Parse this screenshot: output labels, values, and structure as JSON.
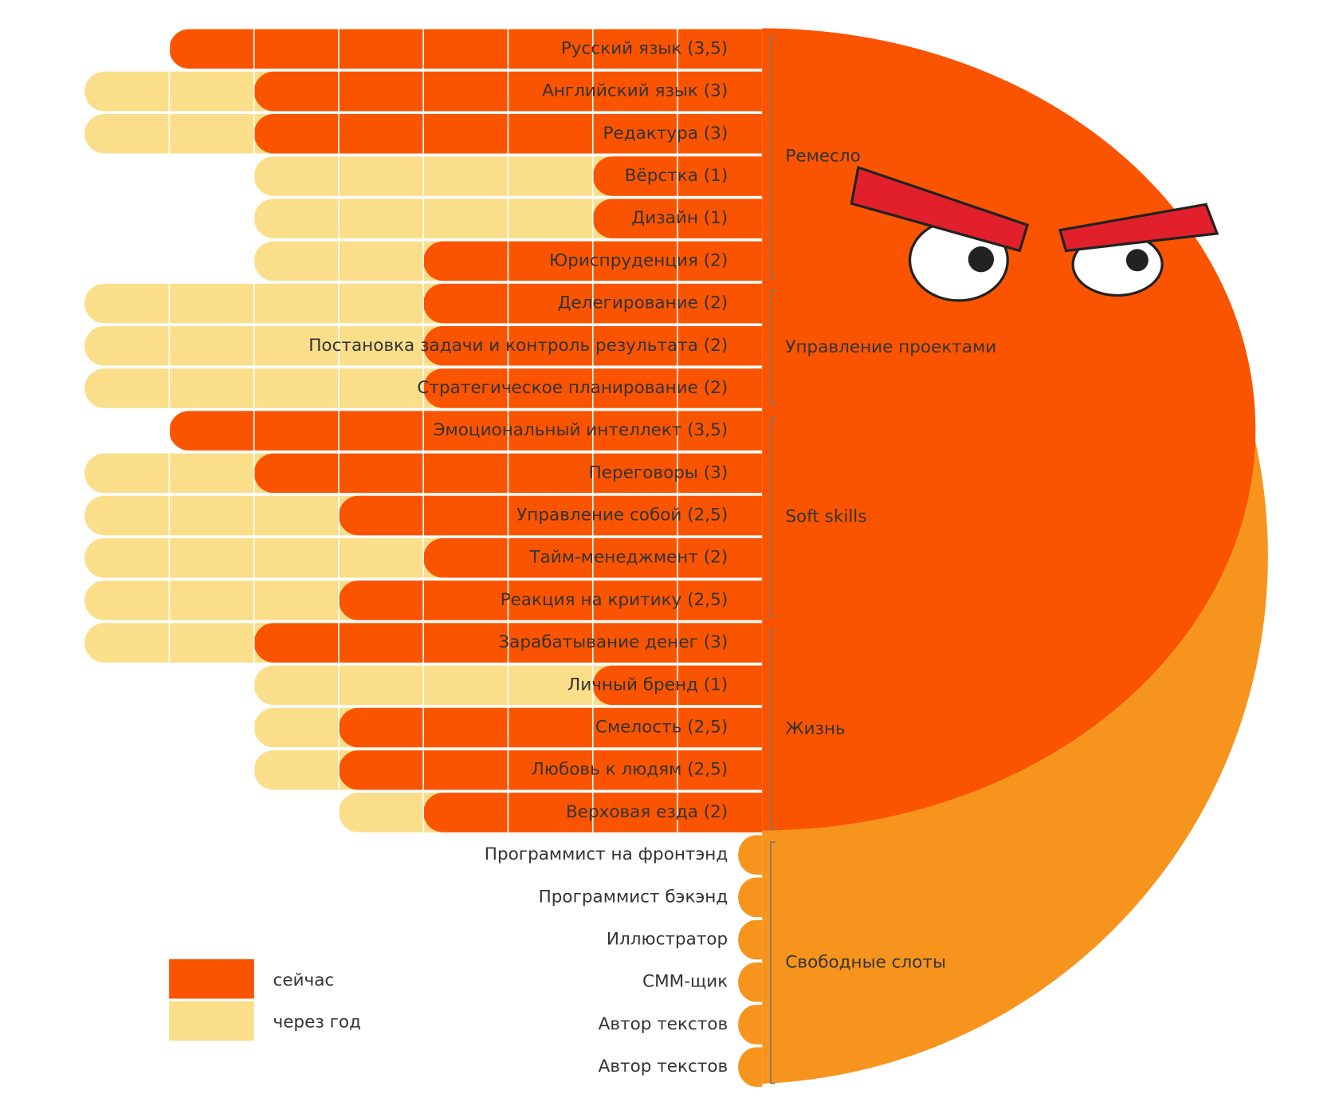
{
  "chart_data": {
    "type": "bar",
    "orientation": "horizontal",
    "direction": "left",
    "xlim": [
      0,
      4
    ],
    "series": [
      {
        "name": "сейчас",
        "color": "#fa5400",
        "values": [
          [
            3.5,
            3,
            3,
            1,
            1,
            2
          ],
          [
            2,
            2,
            2
          ],
          [
            3.5,
            3,
            2.5,
            2,
            2.5
          ],
          [
            3,
            1,
            2.5,
            2.5,
            2
          ]
        ]
      },
      {
        "name": "через год",
        "color": "#fade8a",
        "values": [
          [
            3.5,
            4,
            4,
            3,
            3,
            3
          ],
          [
            4,
            4,
            4
          ],
          [
            3.5,
            4,
            4,
            4,
            4
          ],
          [
            4,
            3,
            3,
            3,
            2.5
          ]
        ]
      }
    ],
    "groups": [
      {
        "name": "Ремесло",
        "categories": [
          "Русский язык (3,5)",
          "Английский язык (3)",
          "Редактура (3)",
          "Вёрстка (1)",
          "Дизайн (1)",
          "Юриспруденция (2)"
        ]
      },
      {
        "name": "Управление проектами",
        "categories": [
          "Делегирование (2)",
          "Постановка задачи и контроль результата (2)",
          "Стратегическое планирование (2)"
        ]
      },
      {
        "name": "Soft skills",
        "categories": [
          "Эмоциональный интеллект (3,5)",
          "Переговоры (3)",
          "Управление собой (2,5)",
          "Тайм-менеджмент (2)",
          "Реакция на критику (2,5)"
        ]
      },
      {
        "name": "Жизнь",
        "categories": [
          "Зарабатывание денег (3)",
          "Личный бренд (1)",
          "Смелость (2,5)",
          "Любовь к людям (2,5)",
          "Верховая езда (2)"
        ]
      }
    ],
    "free_slots": {
      "name": "Свободные слоты",
      "color": "#f7941d",
      "categories": [
        "Программист на фронтэнд",
        "Программист бэкэнд",
        "Иллюстратор",
        "СММ-щик",
        "Автор текстов",
        "Автор текстов"
      ]
    }
  }
}
